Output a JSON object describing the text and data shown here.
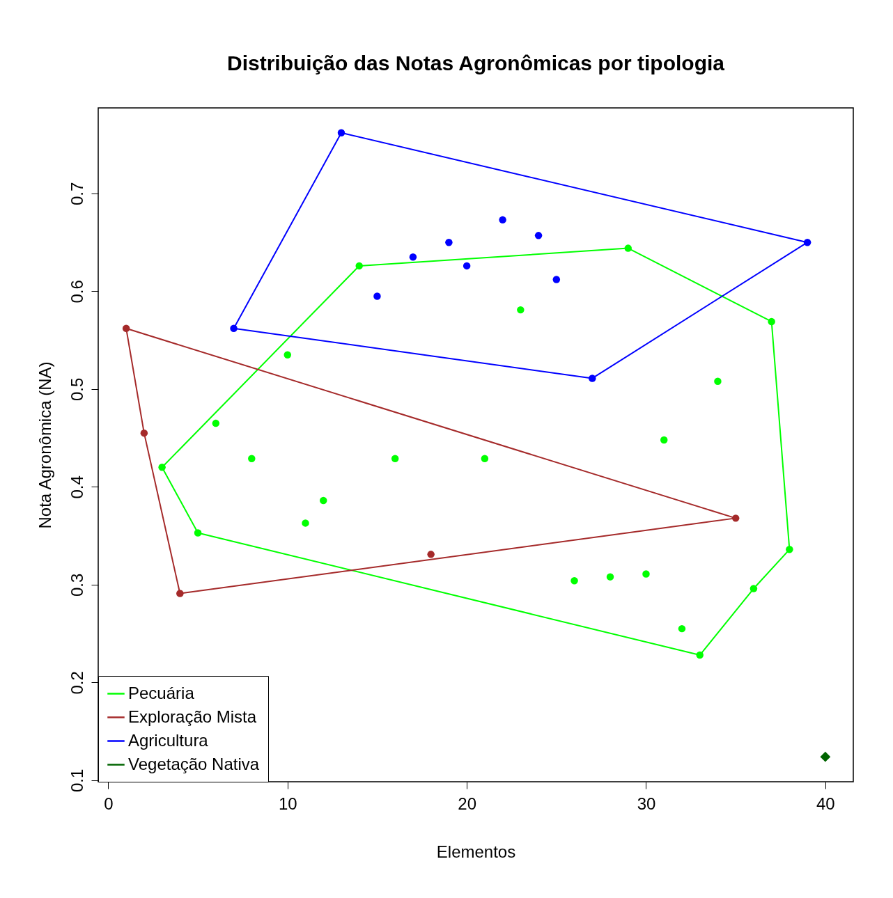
{
  "chart_data": {
    "type": "scatter",
    "title": "Distribuição das Notas Agronômicas por tipologia",
    "xlabel": "Elementos",
    "ylabel": "Nota Agronômica (NA)",
    "xlim": [
      -0.56,
      41.56
    ],
    "ylim": [
      0.0985,
      0.7875
    ],
    "xticks": [
      0,
      10,
      20,
      30,
      40
    ],
    "yticks": [
      0.1,
      0.2,
      0.3,
      0.4,
      0.5,
      0.6,
      0.7
    ],
    "grid": false,
    "legend": "bottom left",
    "marker": "circle",
    "series": [
      {
        "type": "line",
        "name": "Pecuária",
        "color": "#00ff00",
        "marker": "none",
        "x": [
          3,
          14,
          29,
          37,
          38
        ],
        "values": [
          0.42,
          0.626,
          0.644,
          0.569,
          0.336
        ]
      },
      {
        "type": "line",
        "color": "#00ff00",
        "marker": "none",
        "x": [
          3,
          5,
          33,
          36,
          38
        ],
        "values": [
          0.42,
          0.353,
          0.228,
          0.296,
          0.336
        ]
      },
      {
        "type": "line",
        "name": "Exploração Mista",
        "color": "#a52a2a",
        "marker": "none",
        "x": [
          1,
          35
        ],
        "values": [
          0.562,
          0.368
        ]
      },
      {
        "type": "line",
        "color": "#a52a2a",
        "marker": "none",
        "x": [
          1,
          2,
          4,
          35
        ],
        "values": [
          0.562,
          0.455,
          0.291,
          0.368
        ]
      },
      {
        "type": "line",
        "name": "Agricultura",
        "color": "#0000ff",
        "marker": "none",
        "x": [
          7,
          13,
          39
        ],
        "values": [
          0.562,
          0.762,
          0.65
        ]
      },
      {
        "type": "line",
        "color": "#0000ff",
        "marker": "none",
        "x": [
          7,
          27,
          39
        ],
        "values": [
          0.562,
          0.511,
          0.65
        ]
      },
      {
        "type": "scatter",
        "name": "Vegetação Nativa",
        "color": "#006400",
        "marker": "diamond",
        "x": [
          40
        ],
        "values": [
          0.124
        ]
      },
      {
        "color": "#00ff00",
        "x": [
          3,
          5,
          6,
          8,
          10,
          11,
          12,
          14,
          16,
          21,
          23,
          26,
          28,
          29,
          30,
          31,
          32,
          33,
          34,
          36,
          37,
          38
        ],
        "values": [
          0.42,
          0.353,
          0.465,
          0.429,
          0.535,
          0.363,
          0.386,
          0.626,
          0.429,
          0.429,
          0.581,
          0.304,
          0.308,
          0.644,
          0.311,
          0.448,
          0.255,
          0.228,
          0.508,
          0.296,
          0.569,
          0.336
        ]
      },
      {
        "color": "#a52a2a",
        "x": [
          1,
          2,
          4,
          18,
          35
        ],
        "values": [
          0.562,
          0.455,
          0.291,
          0.331,
          0.368
        ]
      },
      {
        "color": "#0000ff",
        "x": [
          7,
          13,
          15,
          17,
          19,
          20,
          22,
          24,
          25,
          27,
          39
        ],
        "values": [
          0.562,
          0.762,
          0.595,
          0.635,
          0.65,
          0.626,
          0.673,
          0.657,
          0.612,
          0.511,
          0.65
        ]
      }
    ]
  }
}
